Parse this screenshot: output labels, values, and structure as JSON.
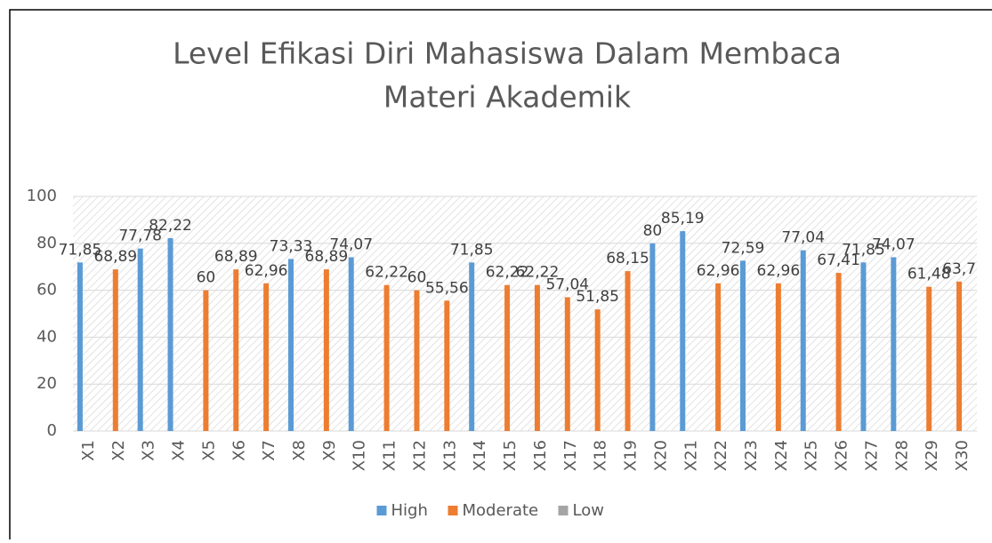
{
  "chart_data": {
    "type": "bar",
    "title": [
      "Level Efikasi Diri Mahasiswa Dalam Membaca",
      "Materi Akademik"
    ],
    "categories": [
      "X1",
      "X2",
      "X3",
      "X4",
      "X5",
      "X6",
      "X7",
      "X8",
      "X9",
      "X10",
      "X11",
      "X12",
      "X13",
      "X14",
      "X15",
      "X16",
      "X17",
      "X18",
      "X19",
      "X20",
      "X21",
      "X22",
      "X23",
      "X24",
      "X25",
      "X26",
      "X27",
      "X28",
      "X29",
      "X30"
    ],
    "series": [
      {
        "name": "High",
        "color": "#5b9bd5",
        "values": [
          71.85,
          null,
          77.78,
          82.22,
          null,
          null,
          null,
          73.33,
          null,
          74.07,
          null,
          null,
          null,
          71.85,
          null,
          null,
          null,
          null,
          null,
          80,
          85.19,
          null,
          72.59,
          null,
          77.04,
          null,
          71.85,
          74.07,
          null,
          null
        ],
        "value_labels": [
          "71,85",
          null,
          "77,78",
          "82,22",
          null,
          null,
          null,
          "73,33",
          null,
          "74,07",
          null,
          null,
          null,
          "71,85",
          null,
          null,
          null,
          null,
          null,
          "80",
          "85,19",
          null,
          "72,59",
          null,
          "77,04",
          null,
          "71,85",
          "74,07",
          null,
          null
        ]
      },
      {
        "name": "Moderate",
        "color": "#ed7d31",
        "values": [
          null,
          68.89,
          null,
          null,
          60,
          68.89,
          62.96,
          null,
          68.89,
          null,
          62.22,
          60,
          55.56,
          null,
          62.22,
          62.22,
          57.04,
          51.85,
          68.15,
          null,
          null,
          62.96,
          null,
          62.96,
          null,
          67.41,
          null,
          null,
          61.48,
          63.7
        ],
        "value_labels": [
          null,
          "68,89",
          null,
          null,
          "60",
          "68,89",
          "62,96",
          null,
          "68,89",
          null,
          "62,22",
          "60",
          "55,56",
          null,
          "62,22",
          "62,22",
          "57,04",
          "51,85",
          "68,15",
          null,
          null,
          "62,96",
          null,
          "62,96",
          null,
          "67,41",
          null,
          null,
          "61,48",
          "63,7"
        ]
      },
      {
        "name": "Low",
        "color": "#a5a5a5",
        "values": [
          null,
          null,
          null,
          null,
          null,
          null,
          null,
          null,
          null,
          null,
          null,
          null,
          null,
          null,
          null,
          null,
          null,
          null,
          null,
          null,
          null,
          null,
          null,
          null,
          null,
          null,
          null,
          null,
          null,
          null
        ]
      }
    ],
    "ylim": [
      0,
      100
    ],
    "yticks": [
      0,
      20,
      40,
      60,
      80,
      100
    ],
    "grid": true,
    "legend": "bottom"
  }
}
